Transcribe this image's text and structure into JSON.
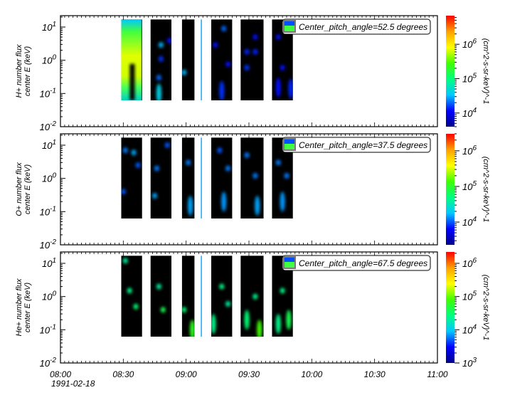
{
  "chart_data": {
    "type": "heatmap",
    "x_axis": {
      "range": [
        "08:00",
        "11:00"
      ],
      "tick_labels": [
        "08:00",
        "08:30",
        "09:00",
        "09:30",
        "10:00",
        "10:30",
        "11:00"
      ],
      "date_label": "1991-02-18"
    },
    "data_intervals": [
      [
        "08:29",
        "08:39"
      ],
      [
        "08:43",
        "08:53"
      ],
      [
        "08:58",
        "09:04"
      ],
      [
        "09:07",
        "09:08"
      ],
      [
        "09:12",
        "09:22"
      ],
      [
        "09:26",
        "09:37"
      ],
      [
        "09:41",
        "09:51"
      ]
    ],
    "energy_range_keV": [
      0.062,
      17
    ],
    "colorscale": [
      "#00008b",
      "#0000ff",
      "#00c8ff",
      "#00ff80",
      "#40ff00",
      "#ffff00",
      "#ffa000",
      "#ff0000"
    ],
    "panels": [
      {
        "ylabel_line1": "H+ number flux",
        "ylabel_line2": "center E (keV)",
        "ylim": [
          0.01,
          22
        ],
        "y_tick_labels": [
          {
            "base": "10",
            "exp": "1"
          },
          {
            "base": "10",
            "exp": "0"
          },
          {
            "base": "10",
            "exp": "-1"
          },
          {
            "base": "10",
            "exp": "-2"
          }
        ],
        "legend": "Center_pitch_angle=52.5 degrees",
        "colorbar_range": [
          4000,
          6800000
        ],
        "colorbar_tick_labels": [
          {
            "base": "10",
            "exp": "6",
            "v": 1000000
          },
          {
            "base": "10",
            "exp": "5",
            "v": 100000
          },
          {
            "base": "10",
            "exp": "4",
            "v": 10000
          }
        ],
        "colorbar_label": "(cm^2-s-sr-keV)^-1",
        "filled_interval_flux": 300000,
        "features": [
          {
            "t": "08:48",
            "e": 2.9,
            "f": 30000
          },
          {
            "t": "08:52",
            "e": 3.9,
            "f": 12000
          },
          {
            "t": "08:48",
            "e": 1.1,
            "f": 15000
          },
          {
            "t": "08:47",
            "e": 0.3,
            "f": 20000
          },
          {
            "t": "08:47",
            "e": 0.1,
            "f": 40000
          },
          {
            "t": "08:59",
            "e": 0.43,
            "f": 30000
          },
          {
            "t": "09:18",
            "e": 9,
            "f": 20000
          },
          {
            "t": "09:14",
            "e": 2.9,
            "f": 12000
          },
          {
            "t": "09:20",
            "e": 0.76,
            "f": 12000
          },
          {
            "t": "09:17",
            "e": 0.12,
            "f": 15000
          },
          {
            "t": "09:33",
            "e": 5,
            "f": 12000
          },
          {
            "t": "09:29",
            "e": 1.8,
            "f": 14000
          },
          {
            "t": "09:33",
            "e": 1.8,
            "f": 14000
          },
          {
            "t": "09:29",
            "e": 0.6,
            "f": 15000
          },
          {
            "t": "09:44",
            "e": 5,
            "f": 12000
          },
          {
            "t": "09:46",
            "e": 0.6,
            "f": 12000
          },
          {
            "t": "09:50",
            "e": 0.14,
            "f": 14000
          },
          {
            "t": "09:44",
            "e": 0.15,
            "f": 12000
          }
        ]
      },
      {
        "ylabel_line1": "O+ number flux",
        "ylabel_line2": "center E (keV)",
        "ylim": [
          0.01,
          22
        ],
        "y_tick_labels": [
          {
            "base": "10",
            "exp": "1"
          },
          {
            "base": "10",
            "exp": "0"
          },
          {
            "base": "10",
            "exp": "-1"
          },
          {
            "base": "10",
            "exp": "-2"
          }
        ],
        "legend": "Center_pitch_angle=37.5 degrees",
        "colorbar_range": [
          2300,
          3000000
        ],
        "colorbar_tick_labels": [
          {
            "base": "10",
            "exp": "6",
            "v": 1000000
          },
          {
            "base": "10",
            "exp": "5",
            "v": 100000
          },
          {
            "base": "10",
            "exp": "4",
            "v": 10000
          }
        ],
        "colorbar_label": "(cm^2-s-sr-keV)^-1",
        "features": [
          {
            "t": "08:31",
            "e": 7,
            "f": 12000
          },
          {
            "t": "08:35",
            "e": 6,
            "f": 15000
          },
          {
            "t": "08:37",
            "e": 2.5,
            "f": 10000
          },
          {
            "t": "08:30",
            "e": 0.4,
            "f": 10000
          },
          {
            "t": "08:46",
            "e": 2,
            "f": 12000
          },
          {
            "t": "08:45",
            "e": 0.3,
            "f": 15000
          },
          {
            "t": "08:51",
            "e": 10,
            "f": 10000
          },
          {
            "t": "09:01",
            "e": 3,
            "f": 12000
          },
          {
            "t": "09:02",
            "e": 0.15,
            "f": 15000
          },
          {
            "t": "09:16",
            "e": 7,
            "f": 10000
          },
          {
            "t": "09:20",
            "e": 2,
            "f": 12000
          },
          {
            "t": "09:18",
            "e": 0.2,
            "f": 14000
          },
          {
            "t": "09:29",
            "e": 5,
            "f": 12000
          },
          {
            "t": "09:33",
            "e": 1.2,
            "f": 12000
          },
          {
            "t": "09:34",
            "e": 0.15,
            "f": 15000
          },
          {
            "t": "09:44",
            "e": 3,
            "f": 12000
          },
          {
            "t": "09:48",
            "e": 1.2,
            "f": 12000
          },
          {
            "t": "09:46",
            "e": 0.2,
            "f": 14000
          }
        ]
      },
      {
        "ylabel_line1": "He+ number flux",
        "ylabel_line2": "center E (keV)",
        "ylim": [
          0.01,
          22
        ],
        "y_tick_labels": [
          {
            "base": "10",
            "exp": "1"
          },
          {
            "base": "10",
            "exp": "0"
          },
          {
            "base": "10",
            "exp": "-1"
          },
          {
            "base": "10",
            "exp": "-2"
          }
        ],
        "legend": "Center_pitch_angle=67.5 degrees",
        "colorbar_range": [
          1000,
          2200000
        ],
        "colorbar_tick_labels": [
          {
            "base": "10",
            "exp": "6",
            "v": 1000000
          },
          {
            "base": "10",
            "exp": "5",
            "v": 100000
          },
          {
            "base": "10",
            "exp": "4",
            "v": 10000
          },
          {
            "base": "10",
            "exp": "3",
            "v": 1000
          }
        ],
        "colorbar_label": "(cm^2-s-sr-keV)^-1",
        "features": [
          {
            "t": "08:31",
            "e": 12,
            "f": 20000
          },
          {
            "t": "08:33",
            "e": 1.5,
            "f": 25000
          },
          {
            "t": "08:36",
            "e": 0.5,
            "f": 30000
          },
          {
            "t": "08:47",
            "e": 2,
            "f": 20000
          },
          {
            "t": "08:49",
            "e": 0.4,
            "f": 40000
          },
          {
            "t": "08:59",
            "e": 0.4,
            "f": 30000
          },
          {
            "t": "09:03",
            "e": 0.1,
            "f": 60000
          },
          {
            "t": "09:17",
            "e": 2,
            "f": 25000
          },
          {
            "t": "09:20",
            "e": 0.6,
            "f": 20000
          },
          {
            "t": "09:13",
            "e": 0.15,
            "f": 25000
          },
          {
            "t": "09:33",
            "e": 1,
            "f": 25000
          },
          {
            "t": "09:35",
            "e": 0.1,
            "f": 80000
          },
          {
            "t": "09:29",
            "e": 0.2,
            "f": 30000
          },
          {
            "t": "09:46",
            "e": 1.5,
            "f": 25000
          },
          {
            "t": "09:49",
            "e": 0.2,
            "f": 40000
          },
          {
            "t": "09:44",
            "e": 0.15,
            "f": 25000
          }
        ]
      }
    ]
  }
}
